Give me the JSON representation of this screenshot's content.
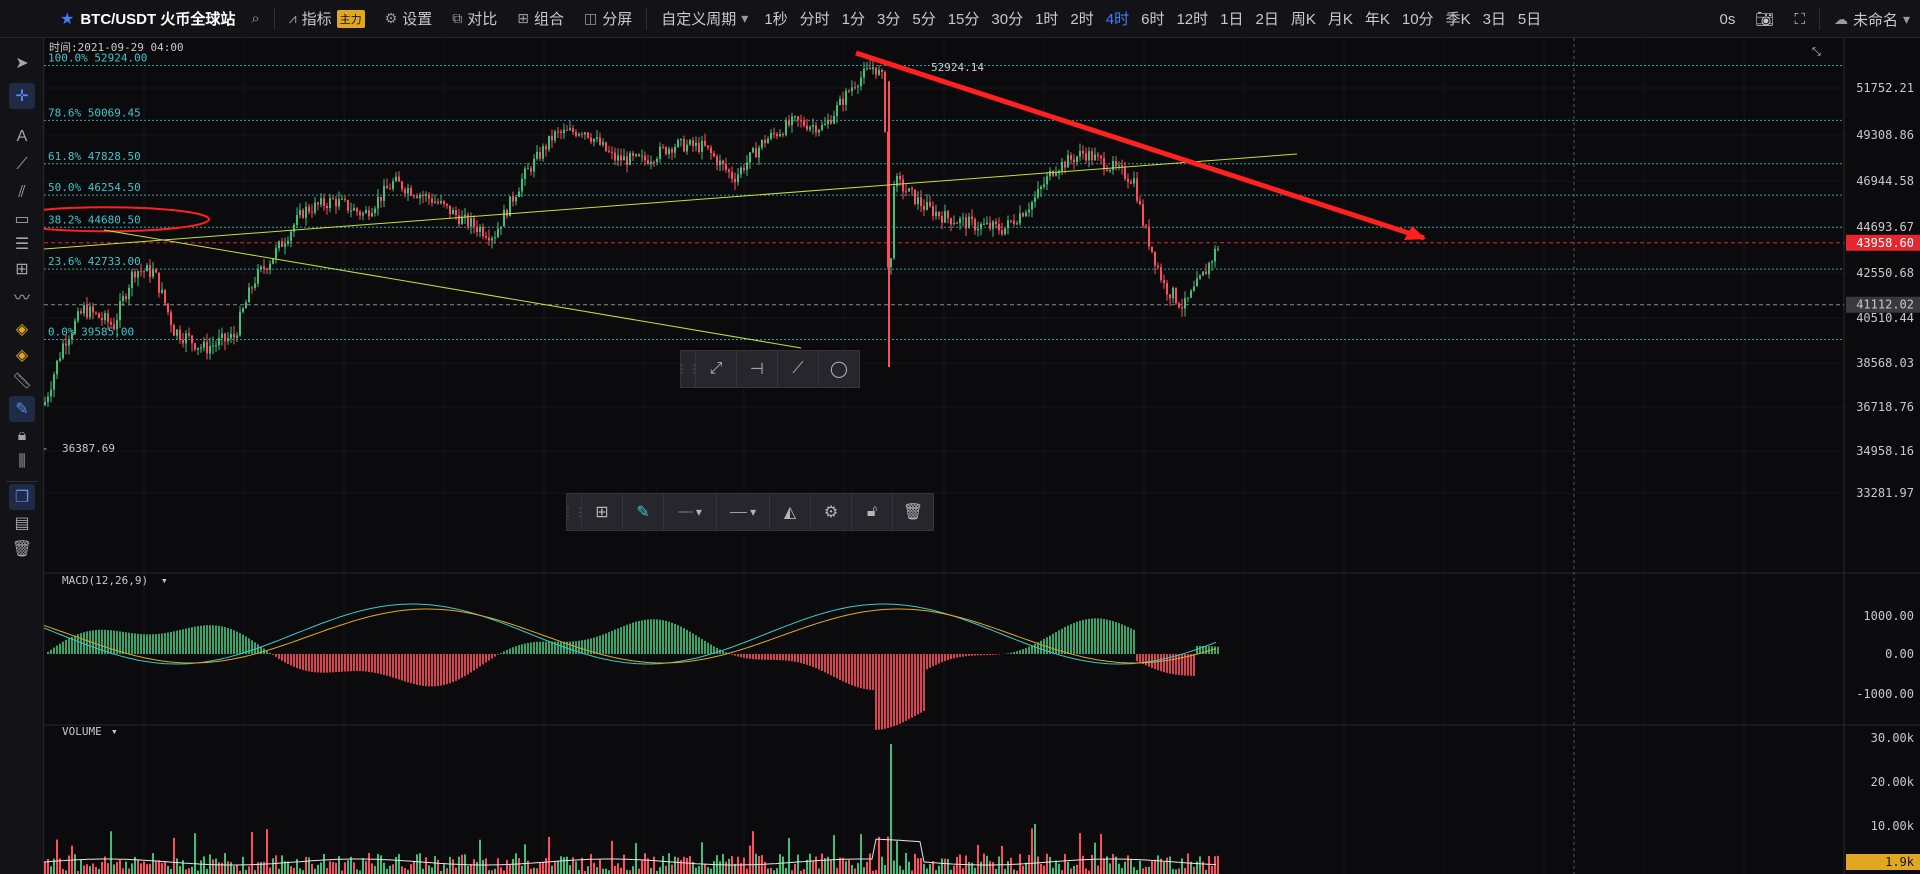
{
  "topbar": {
    "symbol": "BTC/USDT 火币全球站",
    "indicator_label": "指标",
    "indicator_badge": "主力",
    "settings_label": "设置",
    "compare_label": "对比",
    "combo_label": "组合",
    "split_label": "分屏",
    "custom_period_label": "自定义周期",
    "periods": [
      "1秒",
      "分时",
      "1分",
      "3分",
      "5分",
      "15分",
      "30分",
      "1时",
      "2时",
      "4时",
      "6时",
      "12时",
      "1日",
      "2日",
      "周K",
      "月K",
      "年K",
      "10分",
      "季K",
      "3日",
      "5日"
    ],
    "active_period": "4时",
    "countdown": "0s",
    "user_label": "未命名"
  },
  "chart_data": {
    "type": "candlestick",
    "symbol": "BTC/USDT",
    "timeframe": "4时",
    "time_readout": "时间:2021-09-29 04:00",
    "high_label": "52924.14",
    "low_label": "36387.69",
    "price_axis": [
      "51752.21",
      "49308.86",
      "46944.58",
      "44693.67",
      "42550.68",
      "40510.44",
      "38568.03",
      "36718.76",
      "34958.16",
      "33281.97"
    ],
    "current_price": "43958.60",
    "dashed_level": "41112.02",
    "fib_levels": [
      {
        "ratio": "100.0%",
        "price": "52924.00"
      },
      {
        "ratio": "78.6%",
        "price": "50069.45"
      },
      {
        "ratio": "61.8%",
        "price": "47828.50"
      },
      {
        "ratio": "50.0%",
        "price": "46254.50"
      },
      {
        "ratio": "38.2%",
        "price": "44680.50"
      },
      {
        "ratio": "23.6%",
        "price": "42733.00"
      },
      {
        "ratio": "0.0%",
        "price": "39585.00"
      }
    ],
    "highlighted_fib": "38.2%",
    "macd": {
      "label": "MACD(12,26,9)",
      "axis": [
        "1000.00",
        "0.00",
        "-1000.00"
      ]
    },
    "volume": {
      "label": "VOLUME",
      "axis": [
        "30.00k",
        "20.00k",
        "10.00k"
      ],
      "current": "1.9k"
    },
    "colors": {
      "up": "#3fbf7a",
      "down": "#ff4d5e",
      "fib": "#41c3c8",
      "trendline": "#c4e03a",
      "annotation": "#ff2020",
      "current": "#e5262e"
    }
  },
  "icons": {
    "float_toolbar_1": [
      "ray-icon",
      "horizontal-line-icon",
      "segment-icon",
      "ellipse-icon"
    ],
    "float_toolbar_2": [
      "template-icon",
      "pencil-icon",
      "line-style-icon",
      "line-width-icon",
      "fill-icon",
      "settings-icon",
      "lock-icon",
      "trash-icon"
    ]
  }
}
